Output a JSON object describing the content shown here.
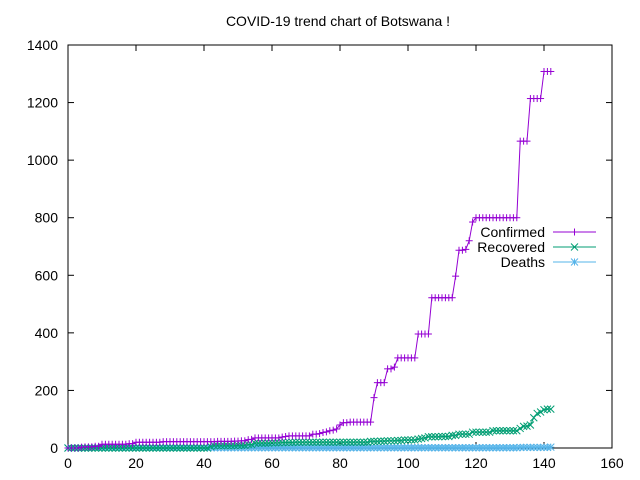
{
  "chart_data": {
    "type": "line",
    "title": "COVID-19 trend chart of Botswana !",
    "xlabel": "",
    "ylabel": "",
    "xlim": [
      0,
      160
    ],
    "ylim": [
      0,
      1400
    ],
    "x_ticks": [
      0,
      20,
      40,
      60,
      80,
      100,
      120,
      140,
      160
    ],
    "y_ticks": [
      0,
      200,
      400,
      600,
      800,
      1000,
      1200,
      1400
    ],
    "grid": false,
    "legend_position": "right",
    "series": [
      {
        "name": "Confirmed",
        "color": "#9400d3",
        "marker": "plus",
        "x": [
          0,
          1,
          2,
          3,
          4,
          5,
          6,
          7,
          8,
          9,
          10,
          11,
          12,
          13,
          14,
          15,
          16,
          17,
          18,
          19,
          20,
          21,
          22,
          23,
          24,
          25,
          26,
          27,
          28,
          29,
          30,
          31,
          32,
          33,
          34,
          35,
          36,
          37,
          38,
          39,
          40,
          41,
          42,
          43,
          44,
          45,
          46,
          47,
          48,
          49,
          50,
          51,
          52,
          53,
          54,
          55,
          56,
          57,
          58,
          59,
          60,
          61,
          62,
          63,
          64,
          65,
          66,
          67,
          68,
          69,
          70,
          71,
          72,
          73,
          74,
          75,
          76,
          77,
          78,
          79,
          80,
          81,
          82,
          83,
          84,
          85,
          86,
          87,
          88,
          89,
          90,
          91,
          92,
          93,
          94,
          95,
          96,
          97,
          98,
          99,
          100,
          101,
          102,
          103,
          104,
          105,
          106,
          107,
          108,
          109,
          110,
          111,
          112,
          113,
          114,
          115,
          116,
          117,
          118,
          119,
          120,
          121,
          122,
          123,
          124,
          125,
          126,
          127,
          128,
          129,
          130,
          131,
          132,
          133,
          134,
          135,
          136,
          137,
          138,
          139,
          140,
          141,
          142
        ],
        "values": [
          0,
          0,
          0,
          0,
          3,
          4,
          4,
          4,
          6,
          6,
          13,
          13,
          13,
          13,
          13,
          13,
          13,
          13,
          15,
          15,
          20,
          20,
          20,
          20,
          20,
          20,
          20,
          20,
          22,
          22,
          22,
          22,
          22,
          22,
          22,
          22,
          22,
          22,
          22,
          22,
          22,
          22,
          22,
          22,
          23,
          23,
          23,
          23,
          23,
          24,
          24,
          25,
          25,
          29,
          30,
          35,
          35,
          35,
          35,
          35,
          35,
          35,
          35,
          38,
          40,
          42,
          42,
          42,
          42,
          42,
          42,
          42,
          48,
          48,
          50,
          54,
          56,
          60,
          62,
          66,
          80,
          88,
          88,
          90,
          90,
          90,
          90,
          90,
          90,
          90,
          175,
          227,
          227,
          227,
          275,
          275,
          281,
          313,
          313,
          313,
          313,
          313,
          313,
          396,
          396,
          396,
          396,
          522,
          522,
          522,
          522,
          522,
          522,
          522,
          597,
          687,
          687,
          690,
          720,
          785,
          800,
          800,
          800,
          800,
          800,
          800,
          800,
          800,
          800,
          800,
          800,
          800,
          800,
          1066,
          1066,
          1066,
          1214,
          1214,
          1214,
          1214,
          1308,
          1308,
          1308
        ]
      },
      {
        "name": "Recovered",
        "color": "#009e73",
        "marker": "cross",
        "x": [
          0,
          1,
          2,
          3,
          4,
          5,
          6,
          7,
          8,
          9,
          10,
          11,
          12,
          13,
          14,
          15,
          16,
          17,
          18,
          19,
          20,
          21,
          22,
          23,
          24,
          25,
          26,
          27,
          28,
          29,
          30,
          31,
          32,
          33,
          34,
          35,
          36,
          37,
          38,
          39,
          40,
          41,
          42,
          43,
          44,
          45,
          46,
          47,
          48,
          49,
          50,
          51,
          52,
          53,
          54,
          55,
          56,
          57,
          58,
          59,
          60,
          61,
          62,
          63,
          64,
          65,
          66,
          67,
          68,
          69,
          70,
          71,
          72,
          73,
          74,
          75,
          76,
          77,
          78,
          79,
          80,
          81,
          82,
          83,
          84,
          85,
          86,
          87,
          88,
          89,
          90,
          91,
          92,
          93,
          94,
          95,
          96,
          97,
          98,
          99,
          100,
          101,
          102,
          103,
          104,
          105,
          106,
          107,
          108,
          109,
          110,
          111,
          112,
          113,
          114,
          115,
          116,
          117,
          118,
          119,
          120,
          121,
          122,
          123,
          124,
          125,
          126,
          127,
          128,
          129,
          130,
          131,
          132,
          133,
          134,
          135,
          136,
          137,
          138,
          139,
          140,
          141,
          142
        ],
        "values": [
          0,
          0,
          0,
          0,
          0,
          0,
          0,
          0,
          0,
          0,
          0,
          0,
          0,
          0,
          0,
          0,
          0,
          0,
          0,
          0,
          0,
          0,
          0,
          0,
          0,
          0,
          0,
          0,
          0,
          0,
          0,
          0,
          0,
          0,
          0,
          0,
          0,
          0,
          0,
          0,
          0,
          0,
          5,
          8,
          8,
          8,
          8,
          8,
          8,
          8,
          9,
          9,
          9,
          12,
          12,
          17,
          17,
          17,
          17,
          17,
          18,
          18,
          18,
          19,
          19,
          19,
          19,
          20,
          20,
          20,
          20,
          20,
          20,
          20,
          20,
          20,
          20,
          20,
          20,
          20,
          20,
          20,
          20,
          20,
          20,
          20,
          20,
          20,
          20,
          23,
          23,
          23,
          24,
          24,
          25,
          25,
          25,
          26,
          26,
          28,
          28,
          28,
          28,
          31,
          33,
          35,
          39,
          39,
          39,
          39,
          40,
          40,
          40,
          44,
          44,
          48,
          48,
          48,
          48,
          55,
          55,
          55,
          55,
          55,
          55,
          60,
          60,
          60,
          60,
          60,
          60,
          60,
          60,
          68,
          75,
          76,
          80,
          105,
          120,
          125,
          133,
          135,
          135
        ]
      },
      {
        "name": "Deaths",
        "color": "#56b4e9",
        "marker": "star",
        "x": [
          0,
          1,
          2,
          3,
          4,
          5,
          6,
          7,
          8,
          9,
          10,
          11,
          12,
          13,
          14,
          15,
          16,
          17,
          18,
          19,
          20,
          21,
          22,
          23,
          24,
          25,
          26,
          27,
          28,
          29,
          30,
          31,
          32,
          33,
          34,
          35,
          36,
          37,
          38,
          39,
          40,
          41,
          42,
          43,
          44,
          45,
          46,
          47,
          48,
          49,
          50,
          51,
          52,
          53,
          54,
          55,
          56,
          57,
          58,
          59,
          60,
          61,
          62,
          63,
          64,
          65,
          66,
          67,
          68,
          69,
          70,
          71,
          72,
          73,
          74,
          75,
          76,
          77,
          78,
          79,
          80,
          81,
          82,
          83,
          84,
          85,
          86,
          87,
          88,
          89,
          90,
          91,
          92,
          93,
          94,
          95,
          96,
          97,
          98,
          99,
          100,
          101,
          102,
          103,
          104,
          105,
          106,
          107,
          108,
          109,
          110,
          111,
          112,
          113,
          114,
          115,
          116,
          117,
          118,
          119,
          120,
          121,
          122,
          123,
          124,
          125,
          126,
          127,
          128,
          129,
          130,
          131,
          132,
          133,
          134,
          135,
          136,
          137,
          138,
          139,
          140,
          141,
          142
        ],
        "values": [
          0,
          0,
          0,
          0,
          0,
          0,
          0,
          1,
          1,
          1,
          1,
          1,
          1,
          1,
          1,
          1,
          1,
          1,
          1,
          1,
          1,
          1,
          1,
          1,
          1,
          1,
          1,
          1,
          1,
          1,
          1,
          1,
          1,
          1,
          1,
          1,
          1,
          1,
          1,
          1,
          1,
          1,
          1,
          1,
          1,
          1,
          1,
          1,
          1,
          1,
          1,
          1,
          1,
          1,
          1,
          1,
          1,
          1,
          1,
          1,
          1,
          1,
          1,
          1,
          1,
          1,
          1,
          1,
          1,
          1,
          1,
          1,
          1,
          1,
          1,
          1,
          1,
          1,
          1,
          1,
          1,
          1,
          1,
          1,
          1,
          1,
          1,
          1,
          1,
          1,
          1,
          1,
          1,
          1,
          1,
          1,
          1,
          1,
          1,
          1,
          1,
          1,
          1,
          1,
          1,
          1,
          1,
          1,
          1,
          1,
          1,
          1,
          1,
          1,
          1,
          1,
          1,
          1,
          1,
          1,
          1,
          1,
          1,
          1,
          1,
          1,
          1,
          1,
          1,
          1,
          1,
          1,
          1,
          2,
          2,
          2,
          2,
          2,
          2,
          2,
          2,
          2,
          3
        ]
      }
    ]
  }
}
